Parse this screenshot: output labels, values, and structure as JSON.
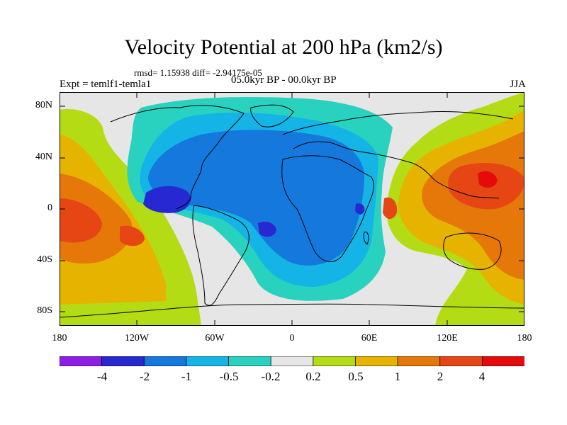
{
  "header": {
    "title": "Velocity Potential at 200 hPa (km2/s)",
    "stats": "rmsd= 1.15938 diff= -2.94175e-05",
    "period": "05.0kyr BP - 00.0kyr BP",
    "experiment": "Expt = temlf1-temla1",
    "season": "JJA"
  },
  "axes": {
    "y_ticks": [
      "80N",
      "40N",
      "0",
      "40S",
      "80S"
    ],
    "x_ticks": [
      "180",
      "120W",
      "60W",
      "0",
      "60E",
      "120E",
      "180"
    ]
  },
  "colorbar": {
    "labels": [
      "-4",
      "-2",
      "-1",
      "-0.5",
      "-0.2",
      "0.2",
      "0.5",
      "1",
      "2",
      "4"
    ],
    "colors": [
      "#8c1ee6",
      "#2828d2",
      "#1478dc",
      "#14b4e6",
      "#28d2be",
      "#e6e6e6",
      "#b4dc14",
      "#e6b400",
      "#e6780a",
      "#e64614",
      "#e60a0a"
    ]
  }
}
